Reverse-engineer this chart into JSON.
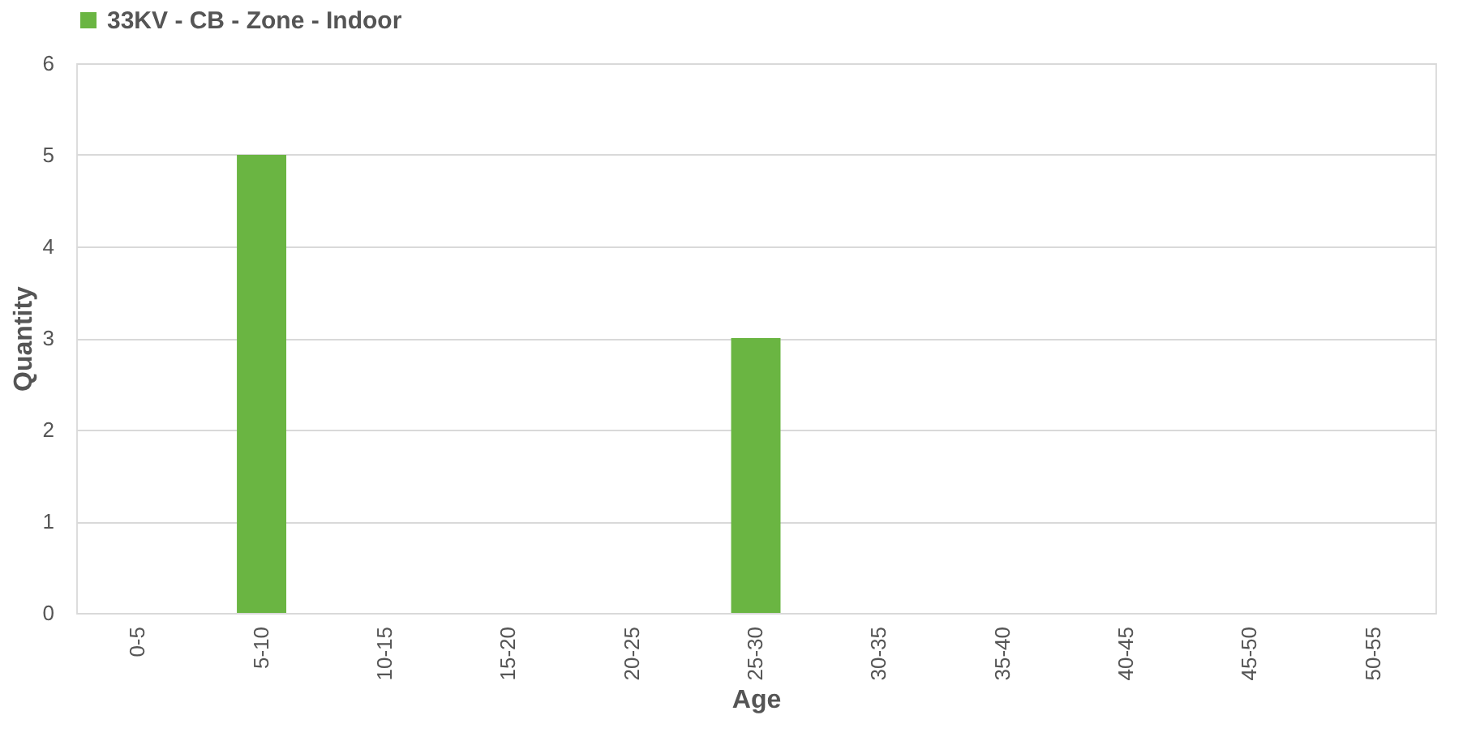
{
  "chart_data": {
    "type": "bar",
    "xlabel": "Age",
    "ylabel": "Quantity",
    "categories": [
      "0-5",
      "5-10",
      "10-15",
      "15-20",
      "20-25",
      "25-30",
      "30-35",
      "35-40",
      "40-45",
      "45-50",
      "50-55"
    ],
    "series": [
      {
        "name": "33KV - CB - Zone - Indoor",
        "color": "#6ab542",
        "values": [
          0,
          5,
          0,
          0,
          0,
          3,
          0,
          0,
          0,
          0,
          0
        ]
      }
    ],
    "ylim": [
      0,
      6
    ],
    "yticks": [
      0,
      1,
      2,
      3,
      4,
      5,
      6
    ],
    "grid": "y",
    "legend": "top"
  }
}
